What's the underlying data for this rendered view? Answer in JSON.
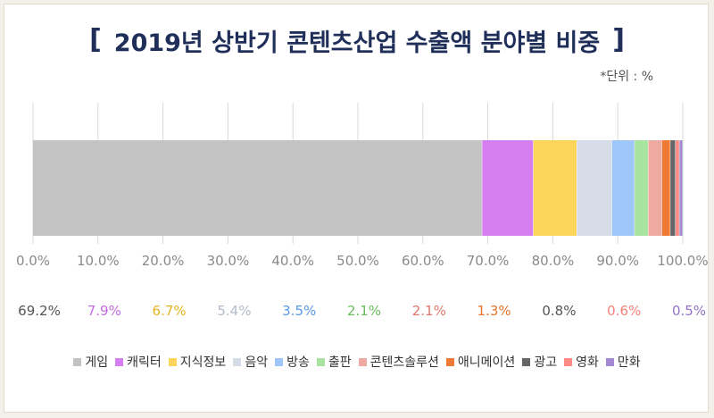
{
  "title": {
    "left_bracket": "[",
    "text": "2019년 상반기 콘텐츠산업 수출액 분야별 비중",
    "right_bracket": "]"
  },
  "unit_note": "*단위 : %",
  "chart_data": {
    "type": "bar",
    "orientation": "horizontal",
    "stacked": true,
    "xlim": [
      0,
      100
    ],
    "xtick_values": [
      0,
      10,
      20,
      30,
      40,
      50,
      60,
      70,
      80,
      90,
      100
    ],
    "xtick_labels": [
      "0.0%",
      "10.0%",
      "20.0%",
      "30.0%",
      "40.0%",
      "50.0%",
      "60.0%",
      "70.0%",
      "80.0%",
      "90.0%",
      "100.0%"
    ],
    "grid": true,
    "legend_position": "bottom",
    "series": [
      {
        "name": "게임",
        "value": 69.2,
        "label": "69.2%",
        "color": "#c3c3c3",
        "label_color": "#555555"
      },
      {
        "name": "캐릭터",
        "value": 7.9,
        "label": "7.9%",
        "color": "#d47ef0",
        "label_color": "#c56ae2"
      },
      {
        "name": "지식정보",
        "value": 6.7,
        "label": "6.7%",
        "color": "#fad55a",
        "label_color": "#e5b424"
      },
      {
        "name": "음악",
        "value": 5.4,
        "label": "5.4%",
        "color": "#d6dbe8",
        "label_color": "#b2bbcc"
      },
      {
        "name": "방송",
        "value": 3.5,
        "label": "3.5%",
        "color": "#9fc6f8",
        "label_color": "#5a9ae6"
      },
      {
        "name": "출판",
        "value": 2.1,
        "label": "2.1%",
        "color": "#a9e3a0",
        "label_color": "#69bf5c"
      },
      {
        "name": "콘텐츠솔루션",
        "value": 2.1,
        "label": "2.1%",
        "color": "#eeaaa1",
        "label_color": "#e0776c"
      },
      {
        "name": "애니메이션",
        "value": 1.3,
        "label": "1.3%",
        "color": "#ee7a35",
        "label_color": "#e5762d"
      },
      {
        "name": "광고",
        "value": 0.8,
        "label": "0.8%",
        "color": "#666666",
        "label_color": "#555555"
      },
      {
        "name": "영화",
        "value": 0.6,
        "label": "0.6%",
        "color": "#ff8d86",
        "label_color": "#f5837b"
      },
      {
        "name": "만화",
        "value": 0.5,
        "label": "0.5%",
        "color": "#a389d4",
        "label_color": "#9373c8"
      }
    ]
  }
}
